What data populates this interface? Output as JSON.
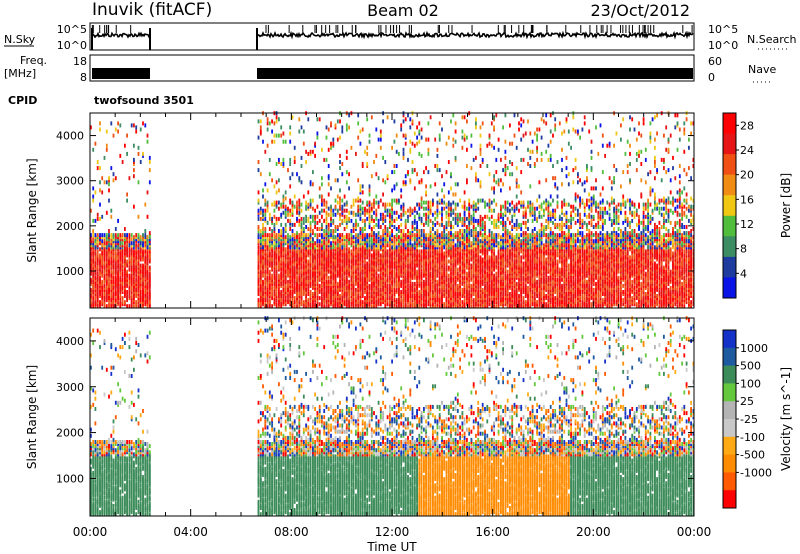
{
  "header": {
    "station": "Inuvik (fitACF)",
    "beam": "Beam 02",
    "date": "23/Oct/2012"
  },
  "top_panels": {
    "nsky_label": "N.Sky",
    "nsky_ticks": [
      "10^5",
      "10^0"
    ],
    "nsearch_label": "N.Search",
    "nsearch_ticks": [
      "10^5",
      "10^0"
    ],
    "freq_label": "Freq.",
    "freq_unit": "[MHz]",
    "freq_ticks": [
      "18",
      "8"
    ],
    "nave_label": "Nave",
    "nave_ticks": [
      "60",
      "0"
    ],
    "cpid_label": "CPID",
    "cpid_value": "twofsound 3501"
  },
  "colors": {
    "power": [
      "#0a14e6",
      "#1e3ca0",
      "#3c8c64",
      "#50be3c",
      "#f0c814",
      "#f08c14",
      "#f05014",
      "#e61414",
      "#ff0000"
    ],
    "velocity": [
      "#ff0000",
      "#ff5a00",
      "#ff8c00",
      "#ffaa14",
      "#c8c8c8",
      "#b4b4b4",
      "#64c83c",
      "#3c8c5a",
      "#1e5aa0",
      "#1432c8"
    ]
  },
  "chart_data": [
    {
      "type": "heatmap",
      "name": "power",
      "ylabel": "Slant Range [km]",
      "xlabel": "Time UT",
      "x_ticks": [
        "00:00",
        "04:00",
        "08:00",
        "12:00",
        "16:00",
        "20:00",
        "00:00"
      ],
      "y_ticks": [
        "1000",
        "2000",
        "3000",
        "4000"
      ],
      "ylim": [
        180,
        4500
      ],
      "xlim_hours": [
        0,
        24
      ],
      "data_gap_hours": [
        2.4,
        6.6
      ],
      "colorbar_label": "Power [dB]",
      "colorbar_ticks": [
        "4",
        "8",
        "12",
        "16",
        "20",
        "24",
        "28"
      ],
      "colorbar_range": [
        0,
        30
      ]
    },
    {
      "type": "heatmap",
      "name": "velocity",
      "ylabel": "Slant Range [km]",
      "xlabel": "Time UT",
      "x_ticks": [
        "00:00",
        "04:00",
        "08:00",
        "12:00",
        "16:00",
        "20:00",
        "00:00"
      ],
      "y_ticks": [
        "1000",
        "2000",
        "3000",
        "4000"
      ],
      "ylim": [
        180,
        4500
      ],
      "xlim_hours": [
        0,
        24
      ],
      "data_gap_hours": [
        2.4,
        6.6
      ],
      "colorbar_label": "Velocity [m s^-1]",
      "colorbar_ticks": [
        "1000",
        "500",
        "100",
        "25",
        "-25",
        "-100",
        "-500",
        "-1000"
      ]
    }
  ]
}
